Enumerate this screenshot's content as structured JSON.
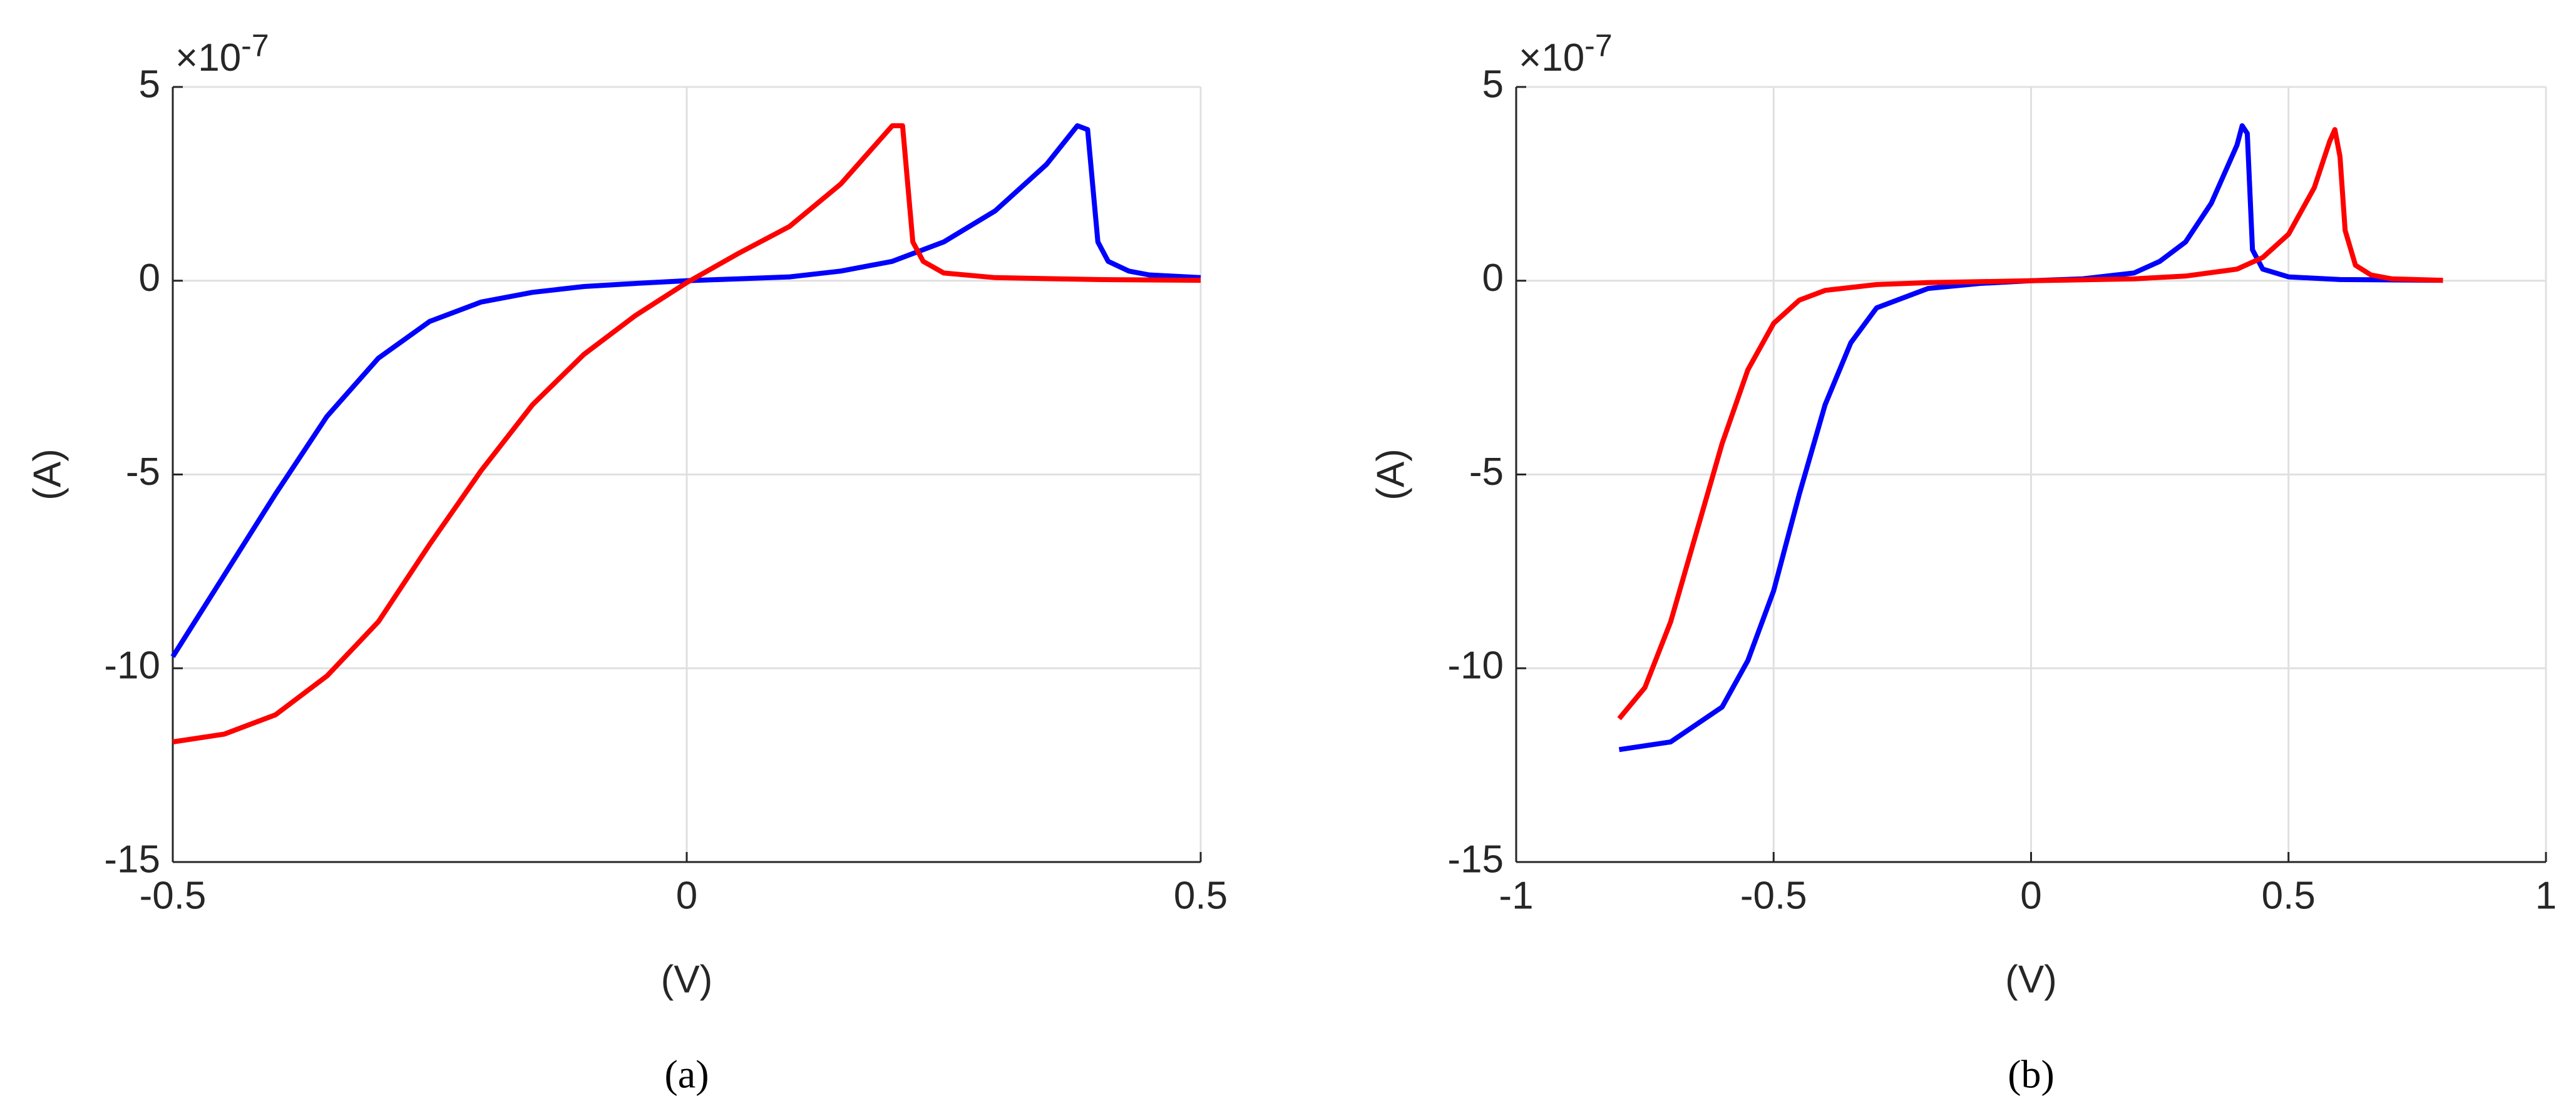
{
  "chart_data": [
    {
      "type": "line",
      "caption": "(a)",
      "xlabel": "(V)",
      "ylabel": "(A)",
      "y_scale_base": "×10",
      "y_scale_exponent": "-7",
      "xlim": [
        -0.5,
        0.5
      ],
      "xticks": [
        -0.5,
        0,
        0.5
      ],
      "ylim": [
        -15,
        5
      ],
      "yticks": [
        -15,
        -10,
        -5,
        0,
        5
      ],
      "grid": true,
      "series": [
        {
          "color": "#0000ff",
          "x": [
            -0.5,
            -0.45,
            -0.4,
            -0.35,
            -0.3,
            -0.25,
            -0.2,
            -0.15,
            -0.1,
            -0.05,
            0,
            0.05,
            0.1,
            0.15,
            0.2,
            0.25,
            0.3,
            0.35,
            0.38,
            0.39,
            0.4,
            0.41,
            0.43,
            0.45,
            0.5
          ],
          "values": [
            -9.7,
            -7.6,
            -5.5,
            -3.5,
            -2.0,
            -1.05,
            -0.55,
            -0.3,
            -0.15,
            -0.07,
            0,
            0.05,
            0.1,
            0.25,
            0.5,
            1.0,
            1.8,
            3.0,
            4.0,
            3.9,
            1.0,
            0.5,
            0.25,
            0.15,
            0.08
          ]
        },
        {
          "color": "#ff0000",
          "x": [
            -0.5,
            -0.45,
            -0.4,
            -0.35,
            -0.3,
            -0.25,
            -0.2,
            -0.15,
            -0.1,
            -0.05,
            0,
            0.05,
            0.1,
            0.15,
            0.2,
            0.21,
            0.22,
            0.23,
            0.25,
            0.3,
            0.4,
            0.5
          ],
          "values": [
            -11.9,
            -11.7,
            -11.2,
            -10.2,
            -8.8,
            -6.8,
            -4.9,
            -3.2,
            -1.9,
            -0.9,
            -0.05,
            0.7,
            1.4,
            2.5,
            4.0,
            4.0,
            1.0,
            0.5,
            0.2,
            0.08,
            0.03,
            0.01
          ]
        }
      ]
    },
    {
      "type": "line",
      "caption": "(b)",
      "xlabel": "(V)",
      "ylabel": "(A)",
      "y_scale_base": "×10",
      "y_scale_exponent": "-7",
      "xlim": [
        -1,
        1
      ],
      "xticks": [
        -1,
        -0.5,
        0,
        0.5,
        1
      ],
      "ylim": [
        -15,
        5
      ],
      "yticks": [
        -15,
        -10,
        -5,
        0,
        5
      ],
      "grid": true,
      "series": [
        {
          "color": "#0000ff",
          "x": [
            -0.8,
            -0.7,
            -0.6,
            -0.55,
            -0.5,
            -0.45,
            -0.4,
            -0.35,
            -0.3,
            -0.2,
            -0.1,
            0,
            0.1,
            0.2,
            0.25,
            0.3,
            0.35,
            0.4,
            0.41,
            0.42,
            0.43,
            0.45,
            0.5,
            0.6,
            0.8
          ],
          "values": [
            -12.1,
            -11.9,
            -11,
            -9.8,
            -8,
            -5.5,
            -3.2,
            -1.6,
            -0.7,
            -0.2,
            -0.07,
            0,
            0.05,
            0.2,
            0.5,
            1.0,
            2.0,
            3.5,
            4.0,
            3.8,
            0.8,
            0.3,
            0.1,
            0.03,
            0.01
          ]
        },
        {
          "color": "#ff0000",
          "x": [
            -0.8,
            -0.75,
            -0.7,
            -0.65,
            -0.6,
            -0.55,
            -0.5,
            -0.45,
            -0.4,
            -0.3,
            -0.2,
            0,
            0.2,
            0.3,
            0.4,
            0.45,
            0.5,
            0.55,
            0.58,
            0.59,
            0.6,
            0.61,
            0.63,
            0.66,
            0.7,
            0.8
          ],
          "values": [
            -11.3,
            -10.5,
            -8.8,
            -6.5,
            -4.2,
            -2.3,
            -1.1,
            -0.5,
            -0.25,
            -0.1,
            -0.05,
            0,
            0.05,
            0.12,
            0.3,
            0.6,
            1.2,
            2.4,
            3.6,
            3.9,
            3.2,
            1.3,
            0.4,
            0.15,
            0.05,
            0.01
          ]
        }
      ]
    }
  ]
}
